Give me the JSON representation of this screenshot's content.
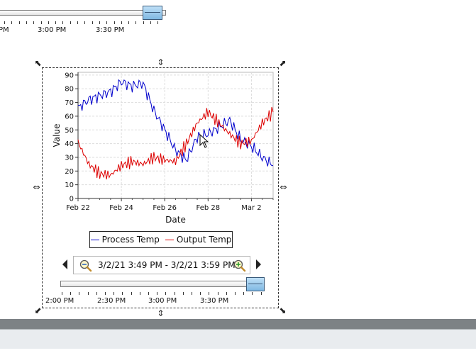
{
  "top_timeline": {
    "tick_labels": [
      "PM",
      "3:00 PM",
      "3:30 PM"
    ]
  },
  "chart_data": {
    "type": "line",
    "xlabel": "Date",
    "ylabel": "Value",
    "x_tick_labels": [
      "Feb 22",
      "Feb 24",
      "Feb 26",
      "Feb 28",
      "Mar 2"
    ],
    "y_ticks": [
      0,
      10,
      20,
      30,
      40,
      50,
      60,
      70,
      80,
      90
    ],
    "ylim": [
      0,
      92
    ],
    "xlim": [
      "2021-02-22",
      "2021-03-03"
    ],
    "grid": true,
    "series": [
      {
        "name": "Process Temp",
        "color": "#0000cc",
        "x": [
          "2021-02-22",
          "2021-02-22T12:00",
          "2021-02-23",
          "2021-02-23T12:00",
          "2021-02-24",
          "2021-02-24T12:00",
          "2021-02-25",
          "2021-02-25T12:00",
          "2021-02-26",
          "2021-02-26T12:00",
          "2021-02-27",
          "2021-02-27T12:00",
          "2021-02-28",
          "2021-02-28T12:00",
          "2021-03-01",
          "2021-03-01T12:00",
          "2021-03-02",
          "2021-03-02T12:00",
          "2021-03-03"
        ],
        "values": [
          66,
          72,
          75,
          78,
          85,
          82,
          84,
          64,
          50,
          35,
          28,
          45,
          47,
          52,
          57,
          43,
          38,
          30,
          24
        ]
      },
      {
        "name": "Output Temp",
        "color": "#dd0000",
        "x": [
          "2021-02-22",
          "2021-02-22T12:00",
          "2021-02-23",
          "2021-02-23T12:00",
          "2021-02-24",
          "2021-02-24T12:00",
          "2021-02-25",
          "2021-02-25T12:00",
          "2021-02-26",
          "2021-02-26T12:00",
          "2021-02-27",
          "2021-02-27T12:00",
          "2021-02-28",
          "2021-02-28T12:00",
          "2021-03-01",
          "2021-03-01T12:00",
          "2021-03-02",
          "2021-03-02T12:00",
          "2021-03-03"
        ],
        "values": [
          41,
          25,
          18,
          17,
          24,
          27,
          25,
          30,
          28,
          27,
          40,
          55,
          63,
          55,
          47,
          40,
          42,
          55,
          63
        ]
      }
    ]
  },
  "legend": {
    "items": [
      {
        "label": "Process Temp",
        "color": "#0000cc"
      },
      {
        "label": "Output Temp",
        "color": "#dd0000"
      }
    ]
  },
  "range_selector": {
    "range_text": "3/2/21 3:49 PM - 3/2/21 3:59 PM",
    "zoom_out_icon": "zoom-out-icon",
    "zoom_in_icon": "zoom-in-icon"
  },
  "bottom_timeline": {
    "tick_labels": [
      "2:00 PM",
      "2:30 PM",
      "3:00 PM",
      "3:30 PM"
    ]
  },
  "colors": {
    "thumb": "#8ec5ec",
    "frame": "#333333",
    "status_bar": "#7d8285"
  }
}
